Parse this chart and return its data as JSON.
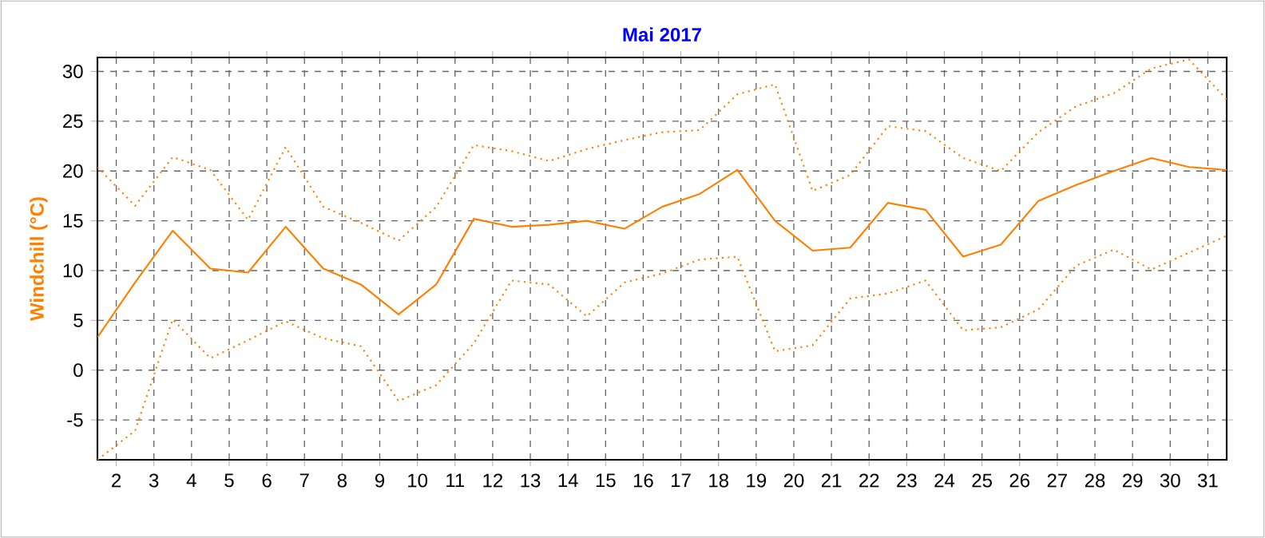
{
  "chart_data": {
    "type": "line",
    "title": "Mai 2017",
    "ylabel": "Windchill  (°C)",
    "x": [
      1.5,
      2.5,
      3.5,
      4.5,
      5.5,
      6.5,
      7.5,
      8.5,
      9.5,
      10.5,
      11.5,
      12.5,
      13.5,
      14.5,
      15.5,
      16.5,
      17.5,
      18.5,
      19.5,
      20.5,
      21.5,
      22.5,
      23.5,
      24.5,
      25.5,
      26.5,
      27.5,
      28.5,
      29.5,
      30.5,
      31.5
    ],
    "series": [
      {
        "color": "#ff8000",
        "line_style": "dotted",
        "values": [
          20.4,
          16.5,
          21.4,
          20.1,
          15.1,
          22.4,
          16.4,
          14.8,
          13.0,
          16.4,
          22.6,
          22.0,
          21.0,
          22.2,
          23.1,
          23.9,
          24.1,
          27.7,
          28.7,
          18.0,
          19.6,
          24.5,
          24.0,
          21.3,
          20.0,
          23.9,
          26.5,
          27.8,
          30.3,
          31.2,
          27.2
        ]
      },
      {
        "color": "#ff8000",
        "line_style": "solid",
        "values": [
          3.3,
          8.8,
          14.0,
          10.2,
          9.8,
          14.4,
          10.2,
          8.6,
          5.6,
          8.6,
          15.2,
          14.4,
          14.6,
          15.0,
          14.2,
          16.4,
          17.7,
          20.1,
          15.0,
          12.0,
          12.3,
          16.8,
          16.1,
          11.4,
          12.6,
          17.0,
          18.6,
          20.0,
          21.3,
          20.4,
          20.1
        ]
      },
      {
        "color": "#ff8000",
        "line_style": "dotted",
        "values": [
          -9.0,
          -6.1,
          5.1,
          1.2,
          3.0,
          4.9,
          3.2,
          2.4,
          -3.1,
          -1.5,
          2.7,
          9.0,
          8.6,
          5.4,
          8.8,
          9.7,
          11.1,
          11.4,
          1.9,
          2.5,
          7.2,
          7.7,
          9.0,
          4.0,
          4.3,
          6.1,
          10.5,
          12.1,
          10.1,
          11.8,
          13.5
        ]
      }
    ],
    "xlim": [
      1.5,
      31.5
    ],
    "ylim": [
      -9,
      31.4
    ],
    "xticks": [
      2,
      3,
      4,
      5,
      6,
      7,
      8,
      9,
      10,
      11,
      12,
      13,
      14,
      15,
      16,
      17,
      18,
      19,
      20,
      21,
      22,
      23,
      24,
      25,
      26,
      27,
      28,
      29,
      30,
      31
    ],
    "yticks": [
      -5,
      0,
      5,
      10,
      15,
      20,
      25,
      30
    ],
    "grid": true
  }
}
